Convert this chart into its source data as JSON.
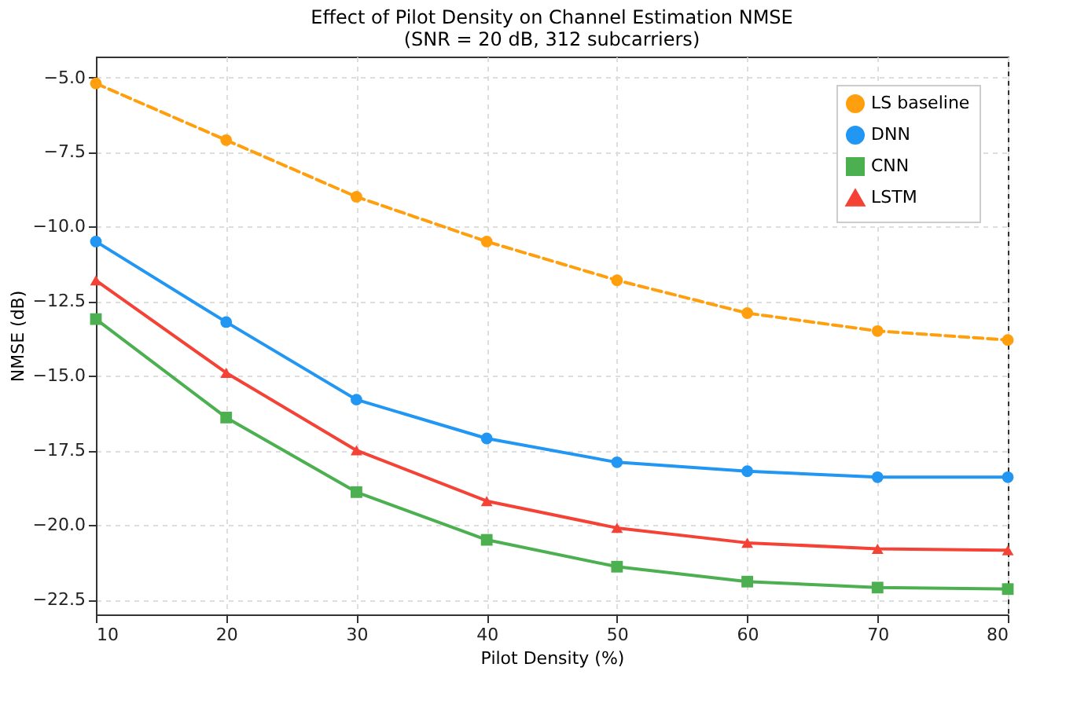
{
  "chart_data": {
    "type": "line",
    "title": "Effect of Pilot Density on Channel Estimation NMSE",
    "subtitle": "(SNR = 20 dB, 312 subcarriers)",
    "xlabel": "Pilot Density (%)",
    "ylabel": "NMSE (dB)",
    "x": [
      10,
      20,
      30,
      40,
      50,
      60,
      70,
      80
    ],
    "series": [
      {
        "name": "LS baseline",
        "color": "#ff9f0e",
        "marker": "circle",
        "line_style": "dashed",
        "values": [
          -5.2,
          -7.1,
          -9.0,
          -10.5,
          -11.8,
          -12.9,
          -13.5,
          -13.8
        ]
      },
      {
        "name": "DNN",
        "color": "#2196f3",
        "marker": "circle",
        "line_style": "solid",
        "values": [
          -10.5,
          -13.2,
          -15.8,
          -17.1,
          -17.9,
          -18.2,
          -18.4,
          -18.4
        ]
      },
      {
        "name": "CNN",
        "color": "#4caf50",
        "marker": "square",
        "line_style": "solid",
        "values": [
          -13.1,
          -16.4,
          -18.9,
          -20.5,
          -21.4,
          -21.9,
          -22.1,
          -22.15
        ]
      },
      {
        "name": "LSTM",
        "color": "#f44336",
        "marker": "triangle",
        "line_style": "solid",
        "values": [
          -11.8,
          -14.9,
          -17.5,
          -19.2,
          -20.1,
          -20.6,
          -20.8,
          -20.85
        ]
      }
    ],
    "xlim": [
      10,
      80
    ],
    "xticks": [
      10,
      20,
      30,
      40,
      50,
      60,
      70,
      80
    ],
    "ylim": [
      -23.0,
      -4.3
    ],
    "yticks": [
      {
        "value": -5,
        "label": "−5.0"
      },
      {
        "value": -7.5,
        "label": "−7.5"
      },
      {
        "value": -10,
        "label": "−10.0"
      },
      {
        "value": -12.5,
        "label": "−12.5"
      },
      {
        "value": -15,
        "label": "−15.0"
      },
      {
        "value": -17.5,
        "label": "−17.5"
      },
      {
        "value": -20,
        "label": "−20.0"
      },
      {
        "value": -22.5,
        "label": "−22.5"
      }
    ],
    "grid": true,
    "legend": "top right"
  }
}
